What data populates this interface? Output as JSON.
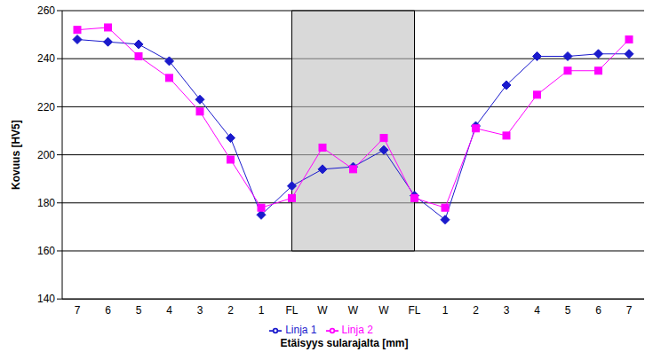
{
  "chart_data": {
    "type": "line",
    "x_label": "Etäisyys sularajalta [mm]",
    "y_label": "Kovuus [HV5]",
    "categories": [
      "7",
      "6",
      "5",
      "4",
      "3",
      "2",
      "1",
      "FL",
      "W",
      "W",
      "W",
      "FL",
      "1",
      "2",
      "3",
      "4",
      "5",
      "6",
      "7"
    ],
    "series": [
      {
        "name": "Linja 1",
        "color": "#1a1acc",
        "marker": "diamond",
        "values": [
          248,
          247,
          246,
          239,
          223,
          207,
          175,
          187,
          194,
          195,
          202,
          183,
          173,
          212,
          229,
          241,
          241,
          242,
          242
        ]
      },
      {
        "name": "Linja 2",
        "color": "#ff00ff",
        "marker": "square",
        "values": [
          252,
          253,
          241,
          232,
          218,
          198,
          178,
          182,
          203,
          194,
          207,
          182,
          178,
          211,
          208,
          225,
          235,
          235,
          248
        ]
      }
    ],
    "weld_zone": {
      "ylim": [
        160,
        260
      ]
    },
    "ylim": [
      140,
      260
    ],
    "yticks": [
      140,
      160,
      180,
      200,
      220,
      240,
      260
    ],
    "grid": true,
    "legend": "bottom"
  }
}
